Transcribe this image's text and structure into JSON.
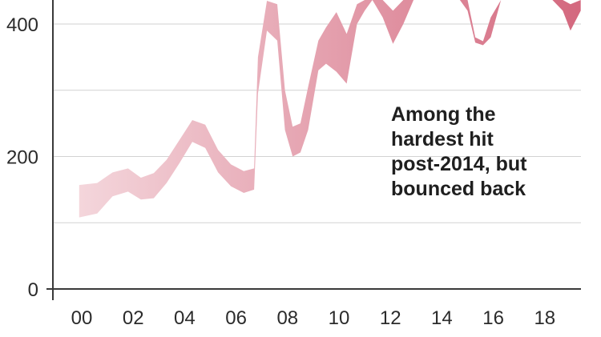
{
  "chart_data": {
    "type": "area",
    "title": "",
    "xlabel": "",
    "ylabel": "",
    "x_ticks": [
      "00",
      "02",
      "04",
      "06",
      "08",
      "10",
      "12",
      "14",
      "16",
      "18"
    ],
    "y_ticks": [
      "0",
      "200",
      "400"
    ],
    "ylim": [
      0,
      440
    ],
    "grid": true,
    "series": [
      {
        "x": [
          1999.9,
          2000.6,
          2001.2,
          2001.8,
          2002.3,
          2002.8,
          2003.3,
          2003.8,
          2004.3,
          2004.8,
          2005.3,
          2005.8,
          2006.3,
          2006.7,
          2006.85,
          2007.2,
          2007.6,
          2007.9,
          2008.2,
          2008.5,
          2008.8,
          2009.2,
          2009.5,
          2009.9,
          2010.3,
          2010.7,
          2011.0,
          2011.3,
          2011.7,
          2012.1,
          2012.5,
          2012.9,
          2013.3,
          2013.7,
          2014.0,
          2014.3,
          2014.7,
          2015.0,
          2015.3,
          2015.6,
          2015.9,
          2016.3,
          2016.7,
          2017.1,
          2017.5,
          2017.9,
          2018.3,
          2018.7,
          2019.0,
          2019.4
        ],
        "low": [
          108,
          114,
          140,
          147,
          135,
          137,
          160,
          190,
          222,
          213,
          176,
          155,
          145,
          150,
          295,
          390,
          375,
          240,
          200,
          206,
          240,
          330,
          340,
          328,
          310,
          400,
          420,
          440,
          410,
          370,
          400,
          440,
          440,
          440,
          440,
          440,
          440,
          420,
          372,
          368,
          380,
          440,
          440,
          440,
          440,
          440,
          440,
          420,
          390,
          420
        ],
        "high": [
          157,
          160,
          176,
          182,
          168,
          175,
          195,
          225,
          255,
          248,
          210,
          188,
          178,
          182,
          350,
          435,
          430,
          300,
          245,
          250,
          305,
          375,
          395,
          418,
          385,
          430,
          440,
          440,
          440,
          420,
          440,
          440,
          440,
          440,
          440,
          440,
          440,
          440,
          380,
          374,
          410,
          440,
          440,
          440,
          440,
          440,
          440,
          440,
          430,
          440
        ],
        "color_start": "#f5dadf",
        "color_end": "#d4697f"
      }
    ],
    "annotations": [
      "Among the",
      "hardest hit",
      "post-2014, but",
      "bounced back"
    ]
  },
  "colors": {
    "axis": "#3a3a3a",
    "grid": "#d2d2d2",
    "text": "#2b2b2b"
  }
}
